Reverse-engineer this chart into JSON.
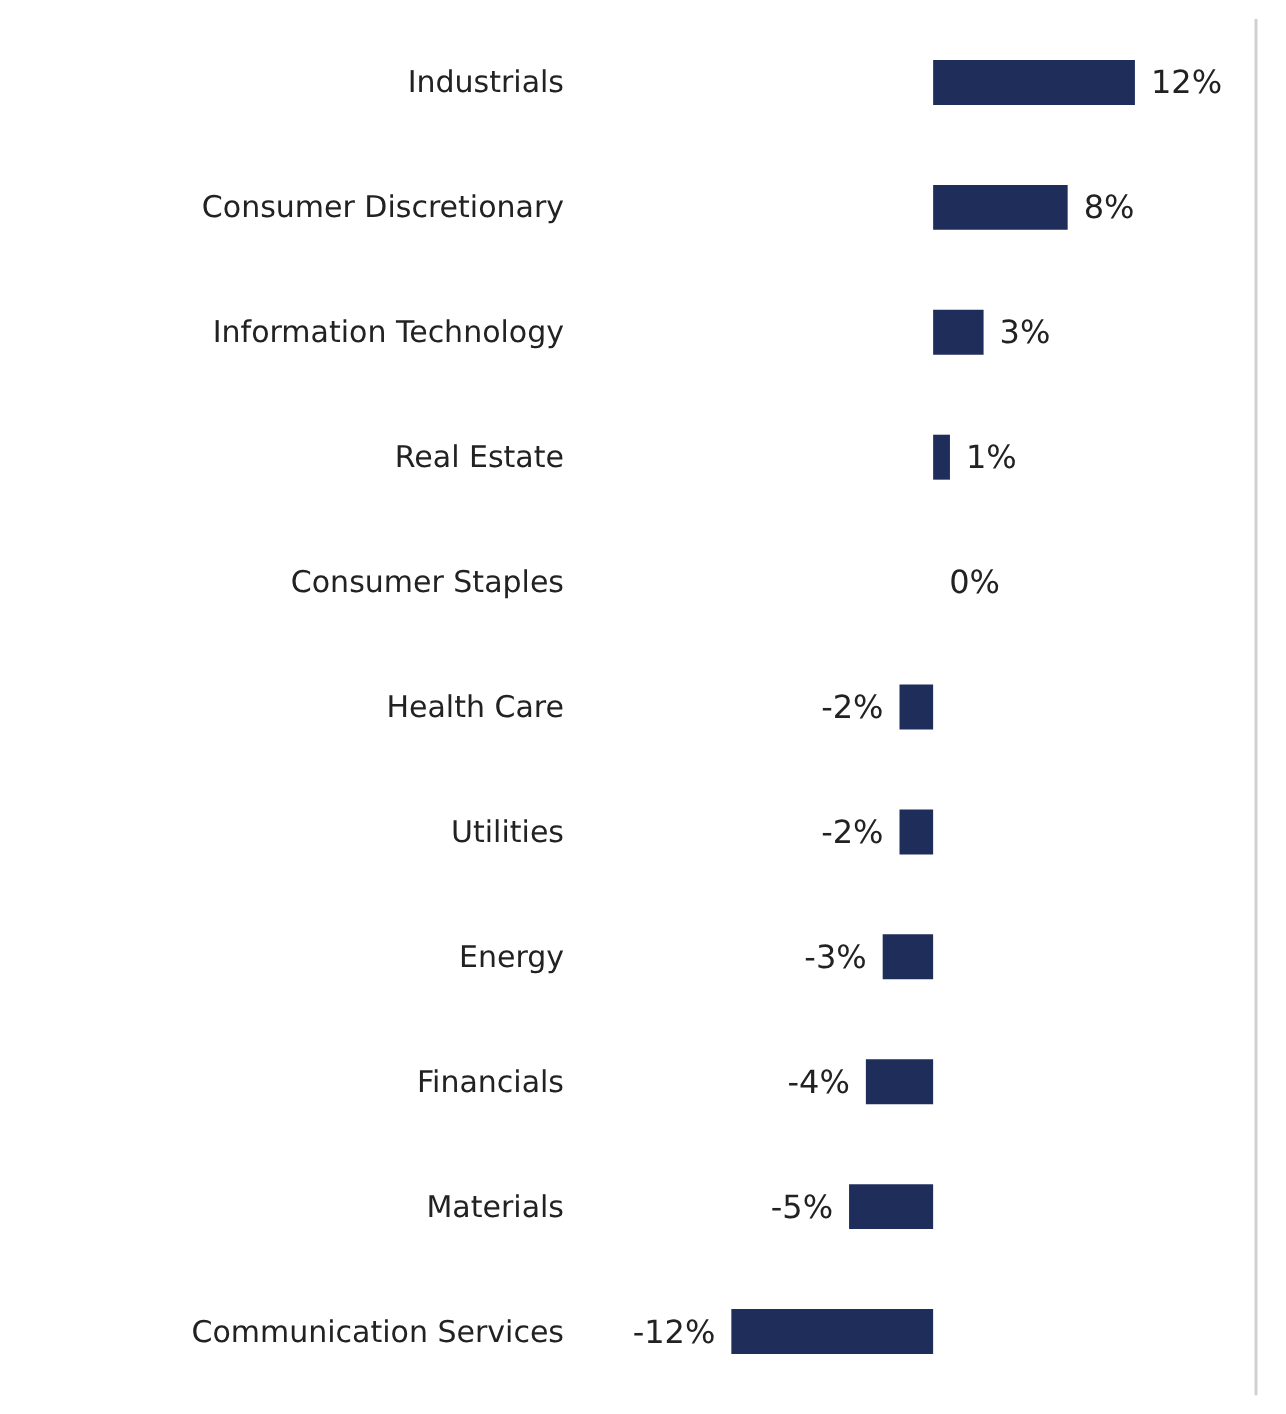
{
  "chart_data": {
    "type": "bar",
    "orientation": "horizontal",
    "categories": [
      "Industrials",
      "Consumer Discretionary",
      "Information Technology",
      "Real Estate",
      "Consumer Staples",
      "Health Care",
      "Utilities",
      "Energy",
      "Financials",
      "Materials",
      "Communication Services"
    ],
    "values": [
      12,
      8,
      3,
      1,
      0,
      -2,
      -2,
      -3,
      -4,
      -5,
      -12
    ],
    "value_labels": [
      "12%",
      "8%",
      "3%",
      "1%",
      "0%",
      "-2%",
      "-2%",
      "-3%",
      "-4%",
      "-5%",
      "-12%"
    ],
    "color": "#1f2d5a"
  }
}
